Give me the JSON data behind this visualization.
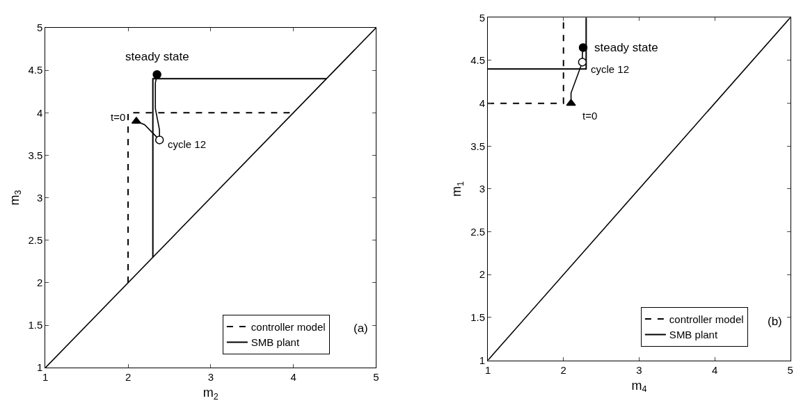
{
  "chart_data": [
    {
      "type": "line",
      "xlabel": "m$_{2}$",
      "ylabel": "m$_{3}$",
      "xlim": [
        1,
        5
      ],
      "ylim": [
        1,
        5
      ],
      "xticks": [
        1,
        2,
        3,
        4,
        5
      ],
      "yticks": [
        1,
        1.5,
        2,
        2.5,
        3,
        3.5,
        4,
        4.5,
        5
      ],
      "legend": "bottom right",
      "series": [
        {
          "color": "#000000",
          "line_style": "solid",
          "x": [
            1,
            5
          ],
          "values": [
            1,
            5
          ]
        },
        {
          "name": "controller model",
          "color": "#000000",
          "line_style": "dashed",
          "x": [
            2,
            2,
            4
          ],
          "values": [
            2,
            4,
            4
          ]
        },
        {
          "name": "SMB plant",
          "color": "#000000",
          "line_style": "solid",
          "x": [
            2.3,
            2.3,
            4.4
          ],
          "values": [
            2.3,
            4.4,
            4.4
          ]
        },
        {
          "color": "#000000",
          "line_style": "solid",
          "x": [
            2.1,
            2.2,
            2.3,
            2.38,
            2.38,
            2.35,
            2.33,
            2.33,
            2.35
          ],
          "values": [
            3.9,
            3.86,
            3.76,
            3.68,
            3.8,
            3.95,
            4.05,
            4.35,
            4.45
          ]
        },
        {
          "type": "scatter",
          "marker": "triangle",
          "color": "#000000",
          "x": [
            2.1
          ],
          "values": [
            3.9
          ]
        },
        {
          "type": "scatter",
          "marker": "circle",
          "color": "#ffffff",
          "x": [
            2.38
          ],
          "values": [
            3.68
          ]
        },
        {
          "type": "scatter",
          "marker": "circle",
          "color": "#000000",
          "x": [
            2.35
          ],
          "values": [
            4.45
          ]
        }
      ],
      "annotations": [
        {
          "text": "steady state",
          "x": 2.35,
          "y": 4.45
        },
        {
          "text": "cycle 12",
          "x": 2.38,
          "y": 3.68
        },
        {
          "text": "t=0",
          "x": 2.1,
          "y": 3.9
        },
        "(a)"
      ]
    },
    {
      "type": "line",
      "xlabel": "m$_{4}$",
      "ylabel": "m$_{1}$",
      "xlim": [
        1,
        5
      ],
      "ylim": [
        1,
        5
      ],
      "xticks": [
        1,
        2,
        3,
        4,
        5
      ],
      "yticks": [
        1,
        1.5,
        2,
        2.5,
        3,
        3.5,
        4,
        4.5,
        5
      ],
      "legend": "bottom right",
      "series": [
        {
          "color": "#000000",
          "line_style": "solid",
          "x": [
            1,
            5
          ],
          "values": [
            1,
            5
          ]
        },
        {
          "name": "controller model",
          "color": "#000000",
          "line_style": "dashed",
          "x": [
            1,
            2,
            2
          ],
          "values": [
            4,
            4,
            5
          ]
        },
        {
          "name": "SMB plant",
          "color": "#000000",
          "line_style": "solid",
          "x": [
            1,
            2.3,
            2.3
          ],
          "values": [
            4.4,
            4.4,
            5
          ]
        },
        {
          "color": "#000000",
          "line_style": "solid",
          "x": [
            2.1,
            2.1,
            2.25,
            2.25,
            2.26
          ],
          "values": [
            4.0,
            4.12,
            4.48,
            4.58,
            4.65
          ]
        },
        {
          "type": "scatter",
          "marker": "triangle",
          "color": "#000000",
          "x": [
            2.1
          ],
          "values": [
            4.0
          ]
        },
        {
          "type": "scatter",
          "marker": "circle",
          "color": "#ffffff",
          "x": [
            2.25
          ],
          "values": [
            4.48
          ]
        },
        {
          "type": "scatter",
          "marker": "circle",
          "color": "#000000",
          "x": [
            2.26
          ],
          "values": [
            4.65
          ]
        }
      ],
      "annotations": [
        {
          "text": "steady state",
          "x": 2.26,
          "y": 4.65
        },
        {
          "text": "cycle 12",
          "x": 2.25,
          "y": 4.48
        },
        {
          "text": "t=0",
          "x": 2.1,
          "y": 4.0
        },
        "(b)"
      ]
    }
  ]
}
